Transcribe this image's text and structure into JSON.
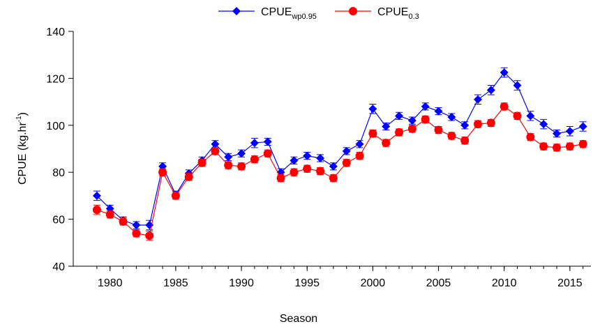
{
  "chart_data": {
    "type": "line",
    "x_label": "Season",
    "y_label": [
      "CPUE (kg.hr",
      "-1",
      ")"
    ],
    "x": [
      1979,
      1980,
      1981,
      1982,
      1983,
      1984,
      1985,
      1986,
      1987,
      1988,
      1989,
      1990,
      1991,
      1992,
      1993,
      1994,
      1995,
      1996,
      1997,
      1998,
      1999,
      2000,
      2001,
      2002,
      2003,
      2004,
      2005,
      2006,
      2007,
      2008,
      2009,
      2010,
      2011,
      2012,
      2013,
      2014,
      2015,
      2016
    ],
    "series": [
      {
        "name": "CPUE",
        "name_sub": "wp0.95",
        "color": "#0000ff",
        "marker": "diamond",
        "values": [
          70,
          64.5,
          59.5,
          57.5,
          57.5,
          82.5,
          70.5,
          79.5,
          85,
          92,
          86.5,
          88,
          92.5,
          93,
          80,
          85,
          87,
          86,
          82.5,
          89,
          92,
          107,
          99.5,
          104,
          102,
          108,
          106,
          103.5,
          100,
          111,
          115,
          122.5,
          117,
          104,
          100.5,
          96.5,
          97.5,
          99.5
        ],
        "errors": [
          2,
          1.5,
          1.5,
          1.5,
          2,
          1.5,
          1.5,
          1.5,
          1.5,
          1.5,
          1.5,
          1.5,
          2,
          1.5,
          1.5,
          1.5,
          1.5,
          1.5,
          1.5,
          1.5,
          1.5,
          2,
          1.5,
          1.5,
          1.5,
          1.5,
          1.5,
          1.5,
          1.5,
          2,
          2,
          2,
          2,
          2,
          2,
          1.5,
          2,
          2
        ]
      },
      {
        "name": "CPUE",
        "name_sub": "0.3",
        "color": "#ff0000",
        "marker": "circle",
        "values": [
          64,
          62,
          59,
          54,
          53,
          80,
          70,
          78,
          84,
          89,
          83,
          82.5,
          85.5,
          88,
          77.5,
          80,
          81.5,
          80.5,
          77.5,
          84,
          87,
          96.5,
          92.5,
          97,
          98.5,
          102.5,
          98,
          95.5,
          93.5,
          100.5,
          101,
          108,
          104,
          95,
          91,
          90.5,
          91,
          92
        ],
        "errors": [
          2,
          1.5,
          1.5,
          1.5,
          2,
          1.5,
          1.5,
          1.5,
          1.5,
          1.5,
          1.5,
          1.5,
          1.5,
          1.5,
          1.5,
          1.5,
          1.5,
          1.5,
          1.5,
          1.5,
          1.5,
          1.5,
          1.5,
          1.5,
          1.5,
          1.5,
          1.5,
          1.5,
          1.5,
          1.5,
          1.5,
          1.5,
          1.5,
          1.5,
          1.5,
          1.5,
          1.5,
          1.5
        ]
      }
    ],
    "xlim": [
      1977.2,
      2016.6
    ],
    "xticks": [
      1980,
      1985,
      1990,
      1995,
      2000,
      2005,
      2010,
      2015
    ],
    "ylim": [
      40,
      140
    ],
    "yticks": [
      40,
      60,
      80,
      100,
      120,
      140
    ]
  }
}
